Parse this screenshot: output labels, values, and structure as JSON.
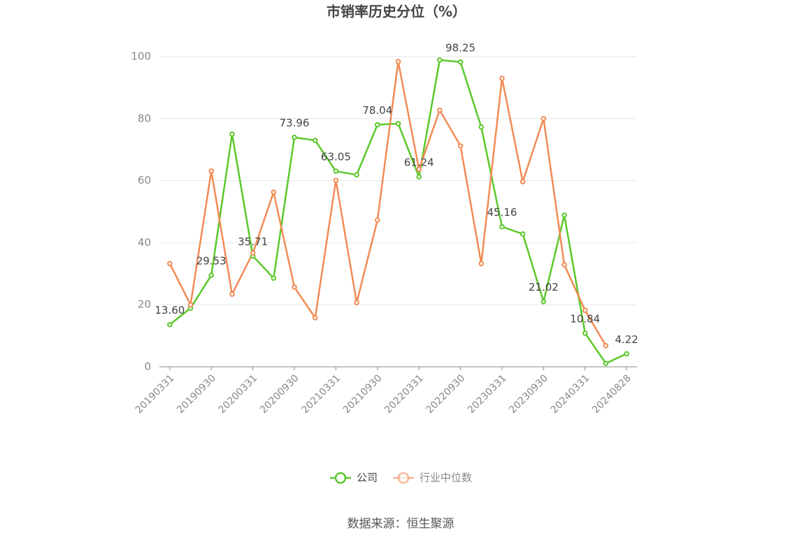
{
  "chart_data": {
    "type": "line",
    "title": "市销率历史分位（%）",
    "source": "数据来源：恒生聚源",
    "categories": [
      "20190331",
      null,
      "20190930",
      null,
      "20200331",
      null,
      "20200930",
      null,
      "20210331",
      null,
      "20210930",
      null,
      "20220331",
      null,
      "20220930",
      null,
      "20230331",
      null,
      "20230930",
      null,
      "20240331",
      null,
      "20240828"
    ],
    "ylim": [
      0,
      100
    ],
    "yticks": [
      0,
      20,
      40,
      60,
      80,
      100
    ],
    "grid": true,
    "series": [
      {
        "name": "公司",
        "color": "#5cc82a",
        "values": [
          13.6,
          18.9,
          29.53,
          75.0,
          35.71,
          28.6,
          73.96,
          73.0,
          63.05,
          61.9,
          78.04,
          78.4,
          61.24,
          98.9,
          98.25,
          77.3,
          45.16,
          42.8,
          21.02,
          48.9,
          10.84,
          1.1,
          4.22
        ],
        "value_labels": [
          "13.60",
          null,
          "29.53",
          null,
          "35.71",
          null,
          "73.96",
          null,
          "63.05",
          null,
          "78.04",
          null,
          "61.24",
          null,
          "98.25",
          null,
          "45.16",
          null,
          "21.02",
          null,
          "10.84",
          null,
          "4.22"
        ]
      },
      {
        "name": "行业中位数",
        "color": "#f28b55",
        "values": [
          33.3,
          20.0,
          63.1,
          23.4,
          36.7,
          56.3,
          25.7,
          15.8,
          60.1,
          20.7,
          47.3,
          98.4,
          63.7,
          82.7,
          71.2,
          33.3,
          93.0,
          59.7,
          80.0,
          32.9,
          18.2,
          6.8,
          null
        ]
      }
    ]
  }
}
